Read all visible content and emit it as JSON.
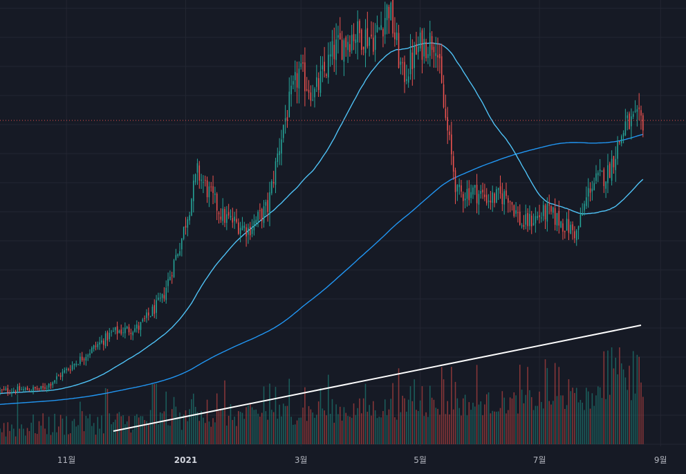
{
  "chart_data": {
    "type": "candlestick",
    "x_axis": {
      "type": "date",
      "range": [
        "2020-09-28",
        "2021-09-14"
      ],
      "ticks": [
        {
          "date": "2020-11-01",
          "label": "11월",
          "bold": false
        },
        {
          "date": "2021-01-01",
          "label": "2021",
          "bold": true
        },
        {
          "date": "2021-03-01",
          "label": "3월",
          "bold": false
        },
        {
          "date": "2021-05-01",
          "label": "5월",
          "bold": false
        },
        {
          "date": "2021-07-01",
          "label": "7월",
          "bold": false
        },
        {
          "date": "2021-09-01",
          "label": "9월",
          "bold": false
        }
      ]
    },
    "y_axis": {
      "visible": false,
      "range": [
        0,
        100
      ],
      "note": "relative price scale; no price labels printed"
    },
    "price_anchors": [
      {
        "date": "2020-09-28",
        "close": 22.0
      },
      {
        "date": "2020-10-20",
        "close": 22.5
      },
      {
        "date": "2020-11-10",
        "close": 30.0
      },
      {
        "date": "2020-11-25",
        "close": 35.5
      },
      {
        "date": "2020-12-08",
        "close": 36.5
      },
      {
        "date": "2020-12-20",
        "close": 43.0
      },
      {
        "date": "2020-12-30",
        "close": 57.0
      },
      {
        "date": "2021-01-07",
        "close": 72.0
      },
      {
        "date": "2021-01-20",
        "close": 62.0
      },
      {
        "date": "2021-02-02",
        "close": 59.0
      },
      {
        "date": "2021-02-12",
        "close": 64.0
      },
      {
        "date": "2021-02-20",
        "close": 83.0
      },
      {
        "date": "2021-02-28",
        "close": 95.0
      },
      {
        "date": "2021-03-08",
        "close": 90.0
      },
      {
        "date": "2021-03-18",
        "close": 100.0
      },
      {
        "date": "2021-03-28",
        "close": 104.0
      },
      {
        "date": "2021-04-08",
        "close": 103.0
      },
      {
        "date": "2021-04-15",
        "close": 110.0
      },
      {
        "date": "2021-04-22",
        "close": 94.0
      },
      {
        "date": "2021-05-01",
        "close": 101.0
      },
      {
        "date": "2021-05-09",
        "close": 103.0
      },
      {
        "date": "2021-05-13",
        "close": 87.0
      },
      {
        "date": "2021-05-20",
        "close": 67.0
      },
      {
        "date": "2021-05-27",
        "close": 68.0
      },
      {
        "date": "2021-06-06",
        "close": 66.0
      },
      {
        "date": "2021-06-15",
        "close": 67.0
      },
      {
        "date": "2021-06-22",
        "close": 60.0
      },
      {
        "date": "2021-07-05",
        "close": 63.0
      },
      {
        "date": "2021-07-20",
        "close": 58.0
      },
      {
        "date": "2021-07-27",
        "close": 69.0
      },
      {
        "date": "2021-08-05",
        "close": 72.0
      },
      {
        "date": "2021-08-14",
        "close": 83.0
      },
      {
        "date": "2021-08-23",
        "close": 84.0
      }
    ],
    "last_price": 84.0,
    "series": [
      {
        "kind": "candles",
        "up_color": "#26a69a",
        "down_color": "#ef5350"
      },
      {
        "kind": "moving_average",
        "period": 50,
        "color": "#4fc3f7"
      },
      {
        "kind": "moving_average",
        "period": 200,
        "color": "#2196f3"
      },
      {
        "kind": "volume",
        "up_color": "#1d6f6a",
        "down_color": "#a53d3d"
      }
    ],
    "last_price_line": {
      "color": "#ef5350",
      "style": "dotted"
    },
    "trendline": {
      "color": "#ffffff",
      "points": [
        {
          "date": "2020-11-25",
          "value": 0.1
        },
        {
          "date": "2021-08-22",
          "value": 1.0
        }
      ],
      "pane": "volume"
    },
    "grid": true
  },
  "colors": {
    "background": "#161a25",
    "grid": "#232632",
    "axis_text": "#b2b5be"
  }
}
